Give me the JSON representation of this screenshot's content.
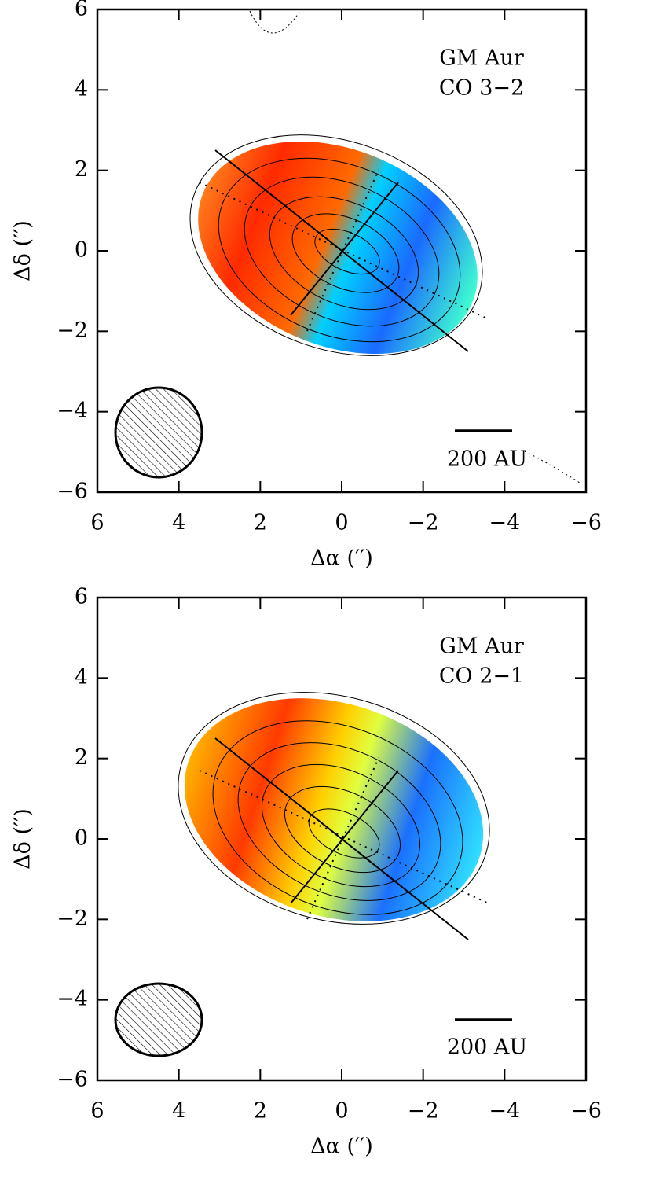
{
  "chart_data": [
    {
      "type": "image",
      "xlabel": "Δα (′′)",
      "ylabel": "Δδ (′′)",
      "annotations": [
        "GM Aur",
        "CO 3−2"
      ],
      "scale_bar_label": "200 AU",
      "xlim": [
        6,
        -6
      ],
      "ylim": [
        -6,
        6
      ],
      "xticks": [
        6,
        4,
        2,
        0,
        {
          "value": -2,
          "label": "−2"
        },
        {
          "value": -4,
          "label": "−4"
        },
        {
          "value": -6,
          "label": "−6"
        }
      ],
      "yticks": [
        {
          "value": -6,
          "label": "−6"
        },
        {
          "value": -4,
          "label": "−4"
        },
        {
          "value": -2,
          "label": "−2"
        },
        0,
        2,
        4,
        6
      ]
    },
    {
      "type": "image",
      "xlabel": "Δα (′′)",
      "ylabel": "Δδ (′′)",
      "annotations": [
        "GM Aur",
        "CO 2−1"
      ],
      "scale_bar_label": "200 AU",
      "xlim": [
        6,
        -6
      ],
      "ylim": [
        -6,
        6
      ],
      "xticks": [
        6,
        4,
        2,
        0,
        {
          "value": -2,
          "label": "−2"
        },
        {
          "value": -4,
          "label": "−4"
        },
        {
          "value": -6,
          "label": "−6"
        }
      ],
      "yticks": [
        {
          "value": -6,
          "label": "−6"
        },
        {
          "value": -4,
          "label": "−4"
        },
        {
          "value": -2,
          "label": "−2"
        },
        0,
        2,
        4,
        6
      ]
    }
  ]
}
